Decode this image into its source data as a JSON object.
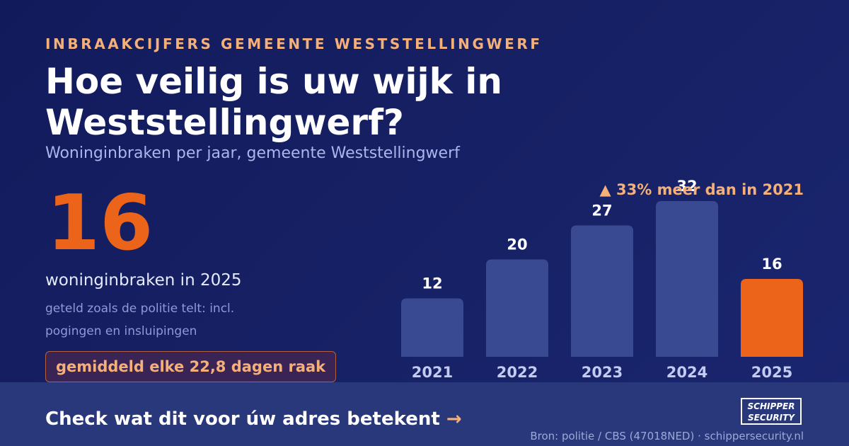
{
  "header": {
    "kicker": "INBRAAKCIJFERS GEMEENTE WESTSTELLINGWERF",
    "title": "Hoe veilig is uw wijk in Weststellingwerf?",
    "subtitle": "Woninginbraken per jaar, gemeente Weststellingwerf"
  },
  "highlight": {
    "value": "16",
    "label": "woninginbraken in 2025",
    "note": "geteld zoals de politie telt: incl. pogingen en insluipingen",
    "badge": "gemiddeld elke 22,8 dagen raak"
  },
  "chart_data": {
    "type": "bar",
    "categories": [
      "2021",
      "2022",
      "2023",
      "2024",
      "2025"
    ],
    "values": [
      12,
      20,
      27,
      32,
      16
    ],
    "highlight_category": "2025",
    "annotation": "▲ 33% meer dan in 2021",
    "title": "",
    "xlabel": "",
    "ylabel": "",
    "ylim": [
      0,
      32
    ],
    "grid": false,
    "bar_color": "#3a4a92",
    "highlight_color": "#ec6419"
  },
  "footer": {
    "cta": "Check wat dit voor úw adres betekent",
    "cta_arrow": "→",
    "source": "Bron: politie / CBS (47018NED) · schippersecurity.nl",
    "logo_line1": "SCHIPPER",
    "logo_line2": "SECURITY"
  },
  "colors": {
    "accent": "#ec6419",
    "highlight_text": "#f5b07a",
    "background": "#141e60"
  }
}
